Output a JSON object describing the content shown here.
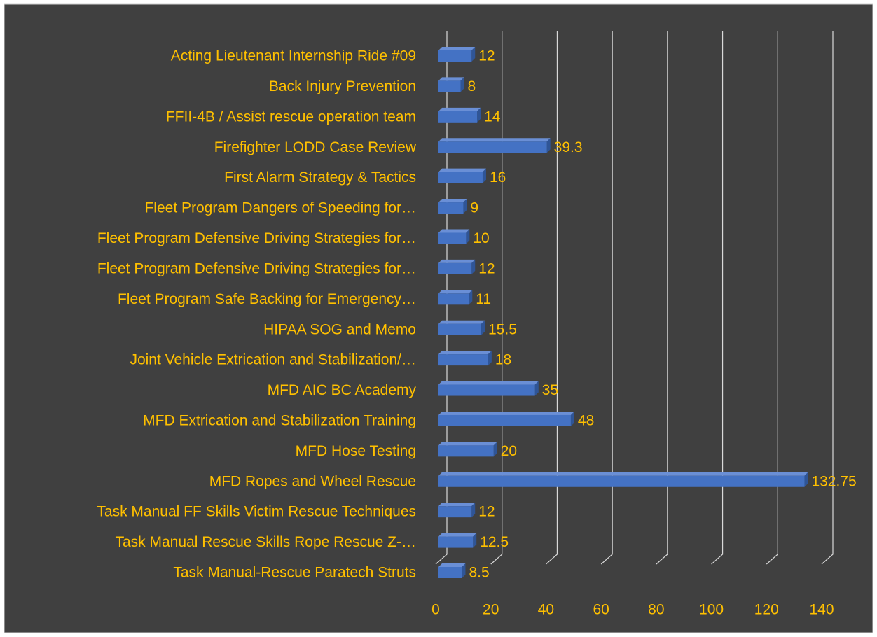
{
  "chart_data": {
    "type": "bar",
    "orientation": "horizontal",
    "categories": [
      "Acting Lieutenant Internship Ride #09",
      "Back Injury Prevention",
      "FFII-4B / Assist rescue operation team",
      "Firefighter LODD Case Review",
      "First Alarm Strategy & Tactics",
      "Fleet Program Dangers of Speeding for…",
      "Fleet Program Defensive Driving Strategies for…",
      "Fleet Program Defensive Driving Strategies for…",
      "Fleet Program Safe Backing for Emergency…",
      "HIPAA SOG and Memo",
      "Joint Vehicle Extrication and Stabilization/…",
      "MFD AIC BC Academy",
      "MFD Extrication and Stabilization Training",
      "MFD Hose Testing",
      "MFD Ropes and Wheel Rescue",
      "Task Manual FF Skills Victim Rescue Techniques",
      "Task Manual Rescue Skills Rope Rescue Z-…",
      "Task Manual-Rescue Paratech Struts"
    ],
    "values": [
      12,
      8,
      14,
      39.3,
      16,
      9,
      10,
      12,
      11,
      15.5,
      18,
      35,
      48,
      20,
      132.75,
      12,
      12.5,
      8.5
    ],
    "color": "#4472c4",
    "label_color": "#ffc000",
    "xlim": [
      0,
      140
    ],
    "xticks": [
      0,
      20,
      40,
      60,
      80,
      100,
      120,
      140
    ],
    "grid": true
  }
}
